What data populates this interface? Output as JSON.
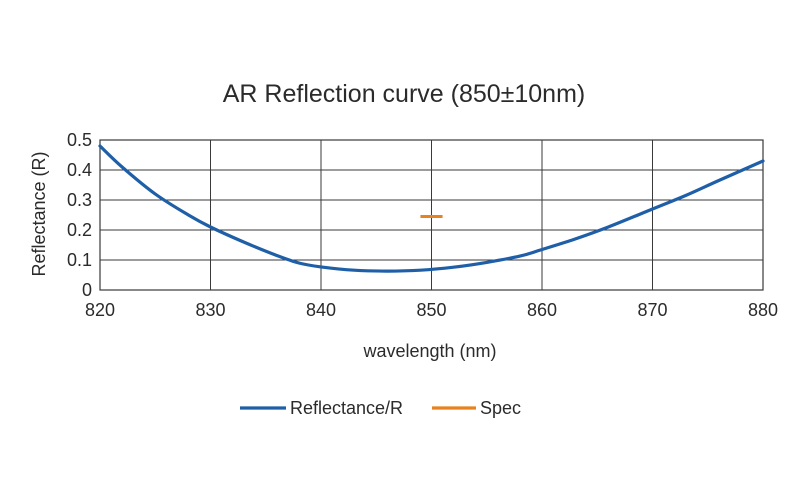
{
  "chart_data": {
    "type": "line",
    "title": "AR Reflection curve   (850±10nm)",
    "xlabel": "wavelength  (nm)",
    "ylabel": "Reflectance   (R)",
    "xlim": [
      820,
      880
    ],
    "ylim": [
      0,
      0.5
    ],
    "x_ticks": [
      "820",
      "830",
      "840",
      "850",
      "860",
      "870",
      "880"
    ],
    "y_ticks": [
      "0",
      "0.1",
      "0.2",
      "0.3",
      "0.4",
      "0.5"
    ],
    "grid": true,
    "legend_position": "bottom",
    "series": [
      {
        "name": "Reflectance/R",
        "color": "#1f5fa8",
        "x": [
          820,
          822,
          825,
          828,
          830,
          833,
          836,
          838,
          840,
          843,
          846,
          849,
          852,
          855,
          858,
          860,
          863,
          866,
          870,
          873,
          876,
          880
        ],
        "y": [
          0.48,
          0.41,
          0.32,
          0.25,
          0.21,
          0.16,
          0.115,
          0.09,
          0.077,
          0.066,
          0.063,
          0.066,
          0.076,
          0.092,
          0.113,
          0.135,
          0.17,
          0.21,
          0.27,
          0.315,
          0.365,
          0.43
        ]
      },
      {
        "name": "Spec",
        "color": "#e8821e",
        "type": "segment",
        "x": [
          849,
          851
        ],
        "y": [
          0.245,
          0.245
        ]
      }
    ]
  }
}
